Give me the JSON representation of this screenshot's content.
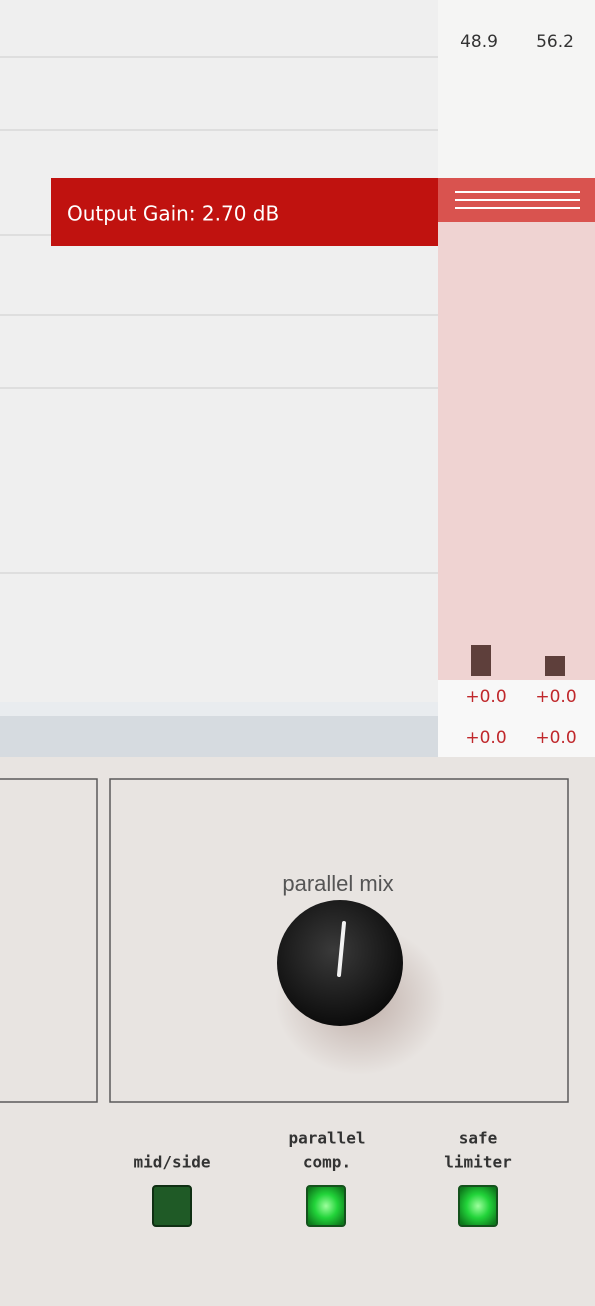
{
  "meter": {
    "peaks": [
      48.9,
      56.2
    ],
    "gain_offsets": [
      [
        "+0.0",
        "+0.0"
      ],
      [
        "+0.0",
        "+0.0"
      ]
    ]
  },
  "tooltip": {
    "label": "Output Gain: 2.70 dB"
  },
  "controls": {
    "knob": {
      "label": "parallel mix"
    },
    "switches": [
      {
        "label": [
          "mid/side"
        ]
      },
      {
        "label": [
          "parallel",
          "comp."
        ]
      },
      {
        "label": [
          "safe",
          "limiter"
        ]
      }
    ]
  }
}
